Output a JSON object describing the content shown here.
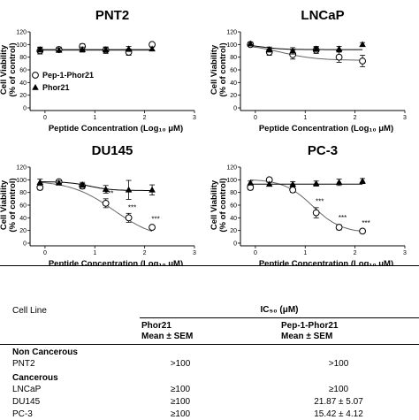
{
  "chart_data": [
    {
      "type": "scatter",
      "title": "PNT2",
      "xlabel": "Peptide Concentration (Log₁₀ μM)",
      "ylabel": "Cell Viability (% of control)",
      "xlim": [
        -0.3,
        3
      ],
      "ylim": [
        0,
        120
      ],
      "xticks": [
        0,
        1,
        2,
        3
      ],
      "yticks": [
        0,
        20,
        40,
        60,
        80,
        100,
        120
      ],
      "legend": "left",
      "series": [
        {
          "name": "Pep-1-Phor21",
          "marker": "open-circle",
          "x": [
            -0.1,
            0.28,
            0.75,
            1.22,
            1.68,
            2.15
          ],
          "y": [
            90,
            92,
            97,
            91,
            88,
            100
          ],
          "err": [
            5,
            4,
            4,
            5,
            5,
            3
          ]
        },
        {
          "name": "Phor21",
          "marker": "filled-triangle",
          "x": [
            -0.1,
            0.28,
            0.75,
            1.22,
            1.68,
            2.15
          ],
          "y": [
            92,
            91,
            92,
            92,
            93,
            93
          ],
          "err": [
            4,
            3,
            4,
            4,
            4,
            3
          ]
        }
      ],
      "fits": [
        {
          "top": 91,
          "bottom": 91,
          "ec50": 2.0,
          "slope": 1
        },
        {
          "top": 92,
          "bottom": 92,
          "ec50": 2.0,
          "slope": 1
        }
      ],
      "annotations": []
    },
    {
      "type": "scatter",
      "title": "LNCaP",
      "xlabel": "Peptide Concentration (Log₁₀ μM)",
      "ylabel": "Cell Viability (% of control)",
      "xlim": [
        -0.3,
        3
      ],
      "ylim": [
        0,
        120
      ],
      "xticks": [
        0,
        1,
        2,
        3
      ],
      "yticks": [
        0,
        20,
        40,
        60,
        80,
        100,
        120
      ],
      "series": [
        {
          "name": "Pep-1-Phor21",
          "marker": "open-circle",
          "x": [
            -0.1,
            0.28,
            0.75,
            1.22,
            1.68,
            2.15
          ],
          "y": [
            100,
            88,
            84,
            91,
            80,
            74
          ],
          "err": [
            3,
            5,
            7,
            5,
            8,
            9
          ]
        },
        {
          "name": "Phor21",
          "marker": "filled-triangle",
          "x": [
            -0.1,
            0.28,
            0.75,
            1.22,
            1.68,
            2.15
          ],
          "y": [
            101,
            92,
            90,
            93,
            93,
            100
          ],
          "err": [
            3,
            4,
            5,
            4,
            4,
            3
          ]
        }
      ],
      "fits": [
        {
          "top": 101,
          "bottom": 75,
          "ec50": 0.5,
          "slope": 1.2
        },
        {
          "top": 101,
          "bottom": 92,
          "ec50": 0.1,
          "slope": 2
        }
      ],
      "annotations": []
    },
    {
      "type": "scatter",
      "title": "DU145",
      "xlabel": "Peptide Concentration (Log₁₀ μM)",
      "ylabel": "Cell Viability (% of control)",
      "xlim": [
        -0.3,
        3
      ],
      "ylim": [
        0,
        120
      ],
      "xticks": [
        0,
        1,
        2,
        3
      ],
      "yticks": [
        0,
        20,
        40,
        60,
        80,
        100,
        120
      ],
      "series": [
        {
          "name": "Pep-1-Phor21",
          "marker": "open-circle",
          "x": [
            -0.1,
            0.28,
            0.75,
            1.22,
            1.68,
            2.15
          ],
          "y": [
            88,
            97,
            90,
            63,
            40,
            25
          ],
          "err": [
            4,
            3,
            4,
            7,
            7,
            3
          ]
        },
        {
          "name": "Phor21",
          "marker": "filled-triangle",
          "x": [
            -0.1,
            0.28,
            0.75,
            1.22,
            1.68,
            2.15
          ],
          "y": [
            96,
            95,
            92,
            85,
            84,
            84
          ],
          "err": [
            5,
            3,
            4,
            6,
            15,
            8
          ]
        }
      ],
      "fits": [
        {
          "top": 99,
          "bottom": 5,
          "ec50": 1.38,
          "slope": 1
        },
        {
          "top": 97,
          "bottom": 83,
          "ec50": 0.9,
          "slope": 2
        }
      ],
      "annotations": [
        {
          "x": 1.22,
          "y": 75,
          "text": "***"
        },
        {
          "x": 1.68,
          "y": 52,
          "text": "***"
        },
        {
          "x": 2.15,
          "y": 34,
          "text": "***"
        }
      ]
    },
    {
      "type": "scatter",
      "title": "PC-3",
      "xlabel": "Peptide Concentration (Log₁₀ μM)",
      "ylabel": "Cell Viability (% of control)",
      "xlim": [
        -0.3,
        3
      ],
      "ylim": [
        0,
        120
      ],
      "xticks": [
        0,
        1,
        2,
        3
      ],
      "yticks": [
        0,
        20,
        40,
        60,
        80,
        100,
        120
      ],
      "series": [
        {
          "name": "Pep-1-Phor21",
          "marker": "open-circle",
          "x": [
            -0.1,
            0.28,
            0.75,
            1.22,
            1.68,
            2.15
          ],
          "y": [
            88,
            100,
            84,
            48,
            25,
            19
          ],
          "err": [
            4,
            3,
            4,
            8,
            4,
            3
          ]
        },
        {
          "name": "Phor21",
          "marker": "filled-triangle",
          "x": [
            -0.1,
            0.28,
            0.75,
            1.22,
            1.68,
            2.15
          ],
          "y": [
            95,
            93,
            93,
            94,
            96,
            98
          ],
          "err": [
            3,
            3,
            4,
            4,
            5,
            4
          ]
        }
      ],
      "fits": [
        {
          "top": 101,
          "bottom": 16,
          "ec50": 1.15,
          "slope": 1.5
        },
        {
          "top": 93,
          "bottom": 93,
          "ec50": 1.0,
          "slope": 1
        }
      ],
      "annotations": [
        {
          "x": 1.22,
          "y": 62,
          "text": "***"
        },
        {
          "x": 1.68,
          "y": 36,
          "text": "***"
        },
        {
          "x": 2.15,
          "y": 28,
          "text": "***"
        }
      ]
    }
  ],
  "legend_items": [
    "Pep-1-Phor21",
    "Phor21"
  ],
  "table": {
    "header_cell_line": "Cell Line",
    "header_ic50": "IC₅₀ (μM)",
    "col1_title": "Phor21",
    "col1_sub": "Mean ± SEM",
    "col2_title": "Pep-1-Phor21",
    "col2_sub": "Mean ± SEM",
    "section1": "Non Cancerous",
    "section2": "Cancerous",
    "rows": [
      {
        "line": "PNT2",
        "phor21": ">100",
        "pep": ">100"
      },
      {
        "line": "LNCaP",
        "phor21": "≥100",
        "pep": "≥100"
      },
      {
        "line": "DU145",
        "phor21": "≥100",
        "pep": "21.87 ± 5.07"
      },
      {
        "line": "PC-3",
        "phor21": "≥100",
        "pep": "15.42 ± 4.12"
      }
    ]
  }
}
